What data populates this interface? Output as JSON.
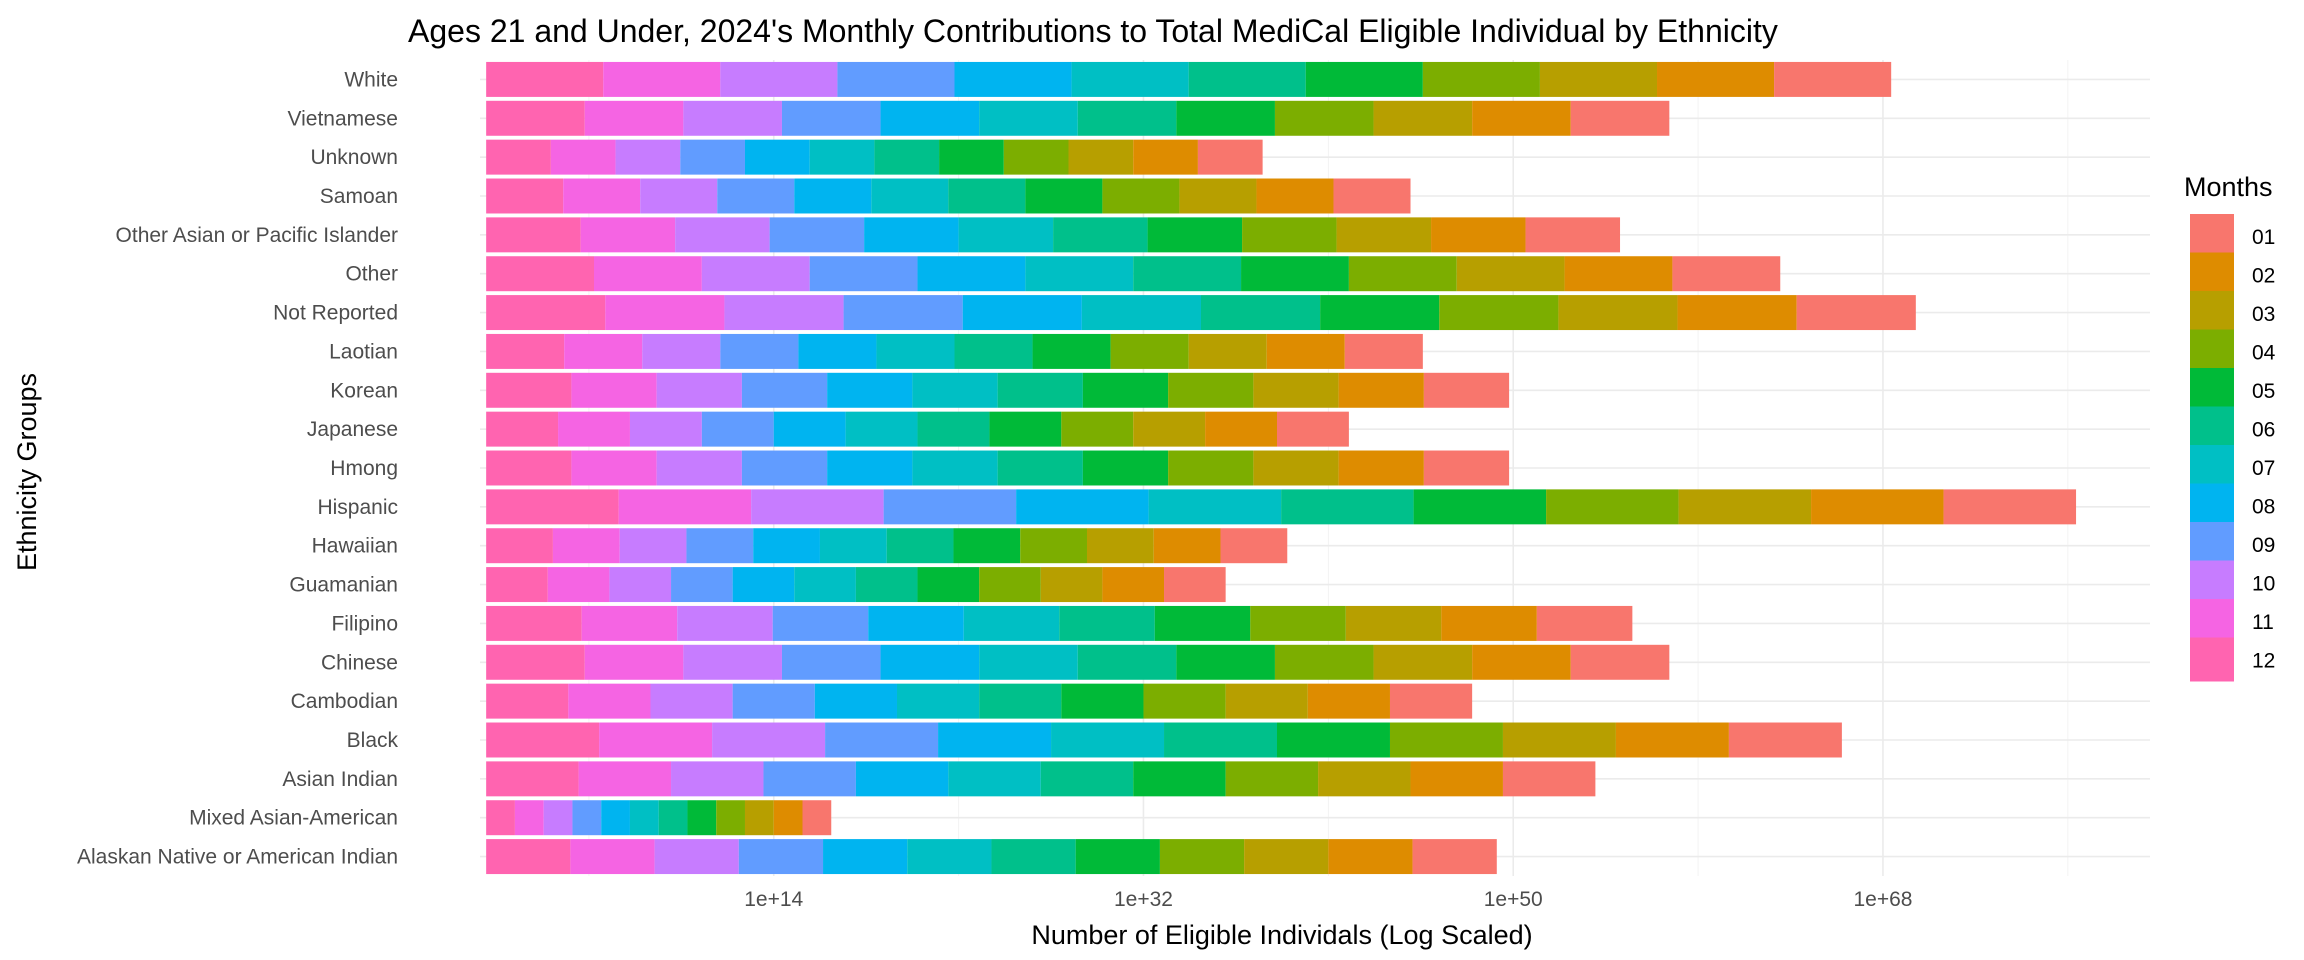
{
  "chart_data": {
    "type": "bar",
    "orientation": "horizontal",
    "stacked": true,
    "title": "Ages 21 and Under, 2024's Monthly Contributions to Total MediCal Eligible Individual by Ethnicity",
    "xlabel": "Number of Eligible Individals (Log Scaled)",
    "ylabel": "Ethnicity Groups",
    "x_scale": "log10",
    "x_ticks": [
      {
        "exp": 14,
        "label": "1e+14"
      },
      {
        "exp": 32,
        "label": "1e+32"
      },
      {
        "exp": 50,
        "label": "1e+50"
      },
      {
        "exp": 68,
        "label": "1e+68"
      }
    ],
    "xlim_log10": [
      -0.3,
      81
    ],
    "grid": true,
    "legend": {
      "title": "Months",
      "position": "right"
    },
    "months": [
      "01",
      "02",
      "03",
      "04",
      "05",
      "06",
      "07",
      "08",
      "09",
      "10",
      "11",
      "12"
    ],
    "month_colors": [
      "#F8766D",
      "#DE8C00",
      "#B79F00",
      "#7CAE00",
      "#00BA38",
      "#00C08B",
      "#00BFC4",
      "#00B4F0",
      "#619CFF",
      "#C77CFF",
      "#F564E3",
      "#FF64B0"
    ],
    "categories": [
      "Alaskan Native or American Indian",
      "Mixed Asian-American",
      "Asian Indian",
      "Black",
      "Cambodian",
      "Chinese",
      "Filipino",
      "Guamanian",
      "Hawaiian",
      "Hispanic",
      "Hmong",
      "Japanese",
      "Korean",
      "Laotian",
      "Not Reported",
      "Other",
      "Other Asian or Pacific Islander",
      "Samoan",
      "Unknown",
      "Vietnamese",
      "White"
    ],
    "series_log10_per_month": [
      4.1,
      1.4,
      4.5,
      5.5,
      4.0,
      4.8,
      4.65,
      3.0,
      3.25,
      6.45,
      4.15,
      3.5,
      4.15,
      3.8,
      5.8,
      5.25,
      4.6,
      3.75,
      3.15,
      4.8,
      5.7
    ]
  }
}
